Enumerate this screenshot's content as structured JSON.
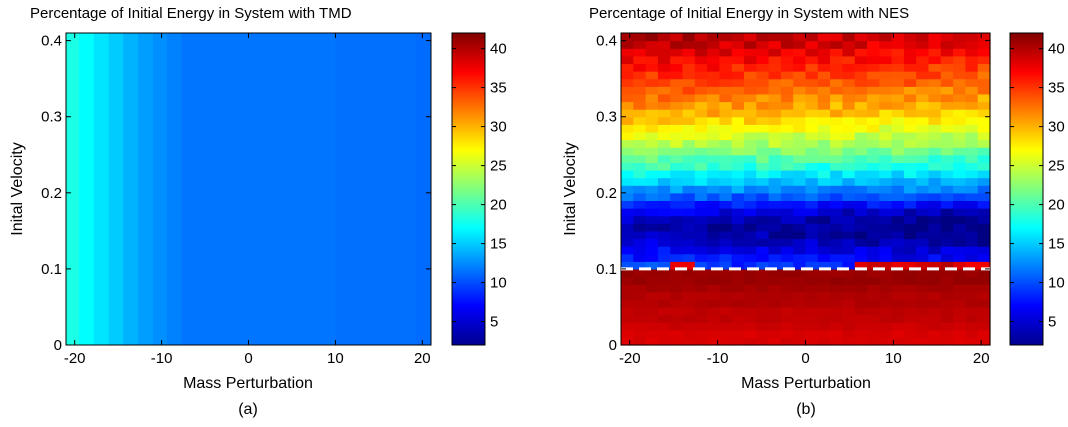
{
  "chart_data": [
    {
      "panel": "a",
      "type": "heatmap",
      "title": "Percentage of Initial Energy in System with TMD",
      "xlabel": "Mass Perturbation",
      "ylabel": "Inital Velocity",
      "caption": "(a)",
      "xlim": [
        -21,
        21
      ],
      "ylim": [
        0,
        0.41
      ],
      "x_ticks": [
        -20,
        -10,
        0,
        10,
        20
      ],
      "y_ticks": [
        0,
        0.1,
        0.2,
        0.3,
        0.4
      ],
      "x_tick_labels": [
        "-20",
        "-10",
        "0",
        "10",
        "20"
      ],
      "y_tick_labels": [
        "0",
        "0.1",
        "0.2",
        "0.3",
        "0.4"
      ],
      "colorbar": {
        "range": [
          2,
          42
        ],
        "ticks": [
          5,
          10,
          15,
          20,
          25,
          30,
          35,
          40
        ],
        "tick_labels": [
          "5",
          "10",
          "15",
          "20",
          "25",
          "30",
          "35",
          "40"
        ]
      },
      "x_bins": [
        {
          "from": -21,
          "to": -19.5,
          "value": 18
        },
        {
          "from": -19.5,
          "to": -17.8,
          "value": 17
        },
        {
          "from": -17.8,
          "to": -16.1,
          "value": 16
        },
        {
          "from": -16.1,
          "to": -14.4,
          "value": 15
        },
        {
          "from": -14.4,
          "to": -12.7,
          "value": 14
        },
        {
          "from": -12.7,
          "to": -11.0,
          "value": 13.2
        },
        {
          "from": -11.0,
          "to": -9.4,
          "value": 12.6
        },
        {
          "from": -9.4,
          "to": -7.7,
          "value": 12.1
        },
        {
          "from": -7.7,
          "to": 10.0,
          "value": 11.6
        },
        {
          "from": 10.0,
          "to": 19.3,
          "value": 11.4
        },
        {
          "from": 19.3,
          "to": 21,
          "value": 11.2
        }
      ]
    },
    {
      "panel": "b",
      "type": "heatmap",
      "title": "Percentage of Initial Energy in System with NES",
      "xlabel": "Mass Perturbation",
      "ylabel": "Inital Velocity",
      "caption": "(b)",
      "xlim": [
        -21,
        21
      ],
      "ylim": [
        0,
        0.41
      ],
      "x_ticks": [
        -20,
        -10,
        0,
        10,
        20
      ],
      "y_ticks": [
        0,
        0.1,
        0.2,
        0.3,
        0.4
      ],
      "x_tick_labels": [
        "-20",
        "-10",
        "0",
        "10",
        "20"
      ],
      "y_tick_labels": [
        "0",
        "0.1",
        "0.2",
        "0.3",
        "0.4"
      ],
      "colorbar": {
        "range": [
          2,
          42
        ],
        "ticks": [
          5,
          10,
          15,
          20,
          25,
          30,
          35,
          40
        ],
        "tick_labels": [
          "5",
          "10",
          "15",
          "20",
          "25",
          "30",
          "35",
          "40"
        ]
      },
      "threshold_line": {
        "y": 0.1,
        "style": "dashed",
        "color": "#ffffff"
      },
      "row_profile": [
        {
          "y": 0.005,
          "value": 38.5
        },
        {
          "y": 0.015,
          "value": 38.5
        },
        {
          "y": 0.025,
          "value": 39
        },
        {
          "y": 0.035,
          "value": 39.5
        },
        {
          "y": 0.045,
          "value": 39.5
        },
        {
          "y": 0.055,
          "value": 40
        },
        {
          "y": 0.065,
          "value": 40
        },
        {
          "y": 0.075,
          "value": 40.5
        },
        {
          "y": 0.085,
          "value": 41
        },
        {
          "y": 0.095,
          "value": 41
        },
        {
          "y": 0.105,
          "value": 9.5
        },
        {
          "y": 0.115,
          "value": 8
        },
        {
          "y": 0.125,
          "value": 7
        },
        {
          "y": 0.135,
          "value": 5.5
        },
        {
          "y": 0.145,
          "value": 4.5
        },
        {
          "y": 0.155,
          "value": 4
        },
        {
          "y": 0.165,
          "value": 4.5
        },
        {
          "y": 0.175,
          "value": 6
        },
        {
          "y": 0.185,
          "value": 8.5
        },
        {
          "y": 0.195,
          "value": 11
        },
        {
          "y": 0.205,
          "value": 13.5
        },
        {
          "y": 0.215,
          "value": 15.5
        },
        {
          "y": 0.225,
          "value": 17.5
        },
        {
          "y": 0.235,
          "value": 19.5
        },
        {
          "y": 0.245,
          "value": 21
        },
        {
          "y": 0.255,
          "value": 23
        },
        {
          "y": 0.265,
          "value": 24.5
        },
        {
          "y": 0.275,
          "value": 26
        },
        {
          "y": 0.285,
          "value": 27.5
        },
        {
          "y": 0.295,
          "value": 29
        },
        {
          "y": 0.305,
          "value": 30.5
        },
        {
          "y": 0.315,
          "value": 31.5
        },
        {
          "y": 0.325,
          "value": 32.5
        },
        {
          "y": 0.335,
          "value": 33.5
        },
        {
          "y": 0.345,
          "value": 34.5
        },
        {
          "y": 0.355,
          "value": 35.5
        },
        {
          "y": 0.365,
          "value": 36.5
        },
        {
          "y": 0.375,
          "value": 37.5
        },
        {
          "y": 0.385,
          "value": 38.5
        },
        {
          "y": 0.395,
          "value": 39.5
        },
        {
          "y": 0.405,
          "value": 40
        }
      ],
      "trend_with_mass": "value decreases slightly from x=-20 to x=20 above 0.1",
      "notes": "row just above 0.1 is red near x=-15 and for x > 5"
    }
  ]
}
